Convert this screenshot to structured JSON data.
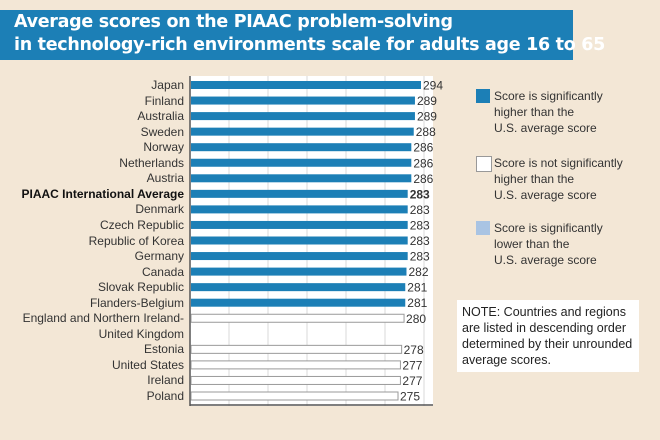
{
  "title": {
    "line1": "Average scores on the PIAAC problem-solving",
    "line2": "in technology-rich environments scale for adults age 16 to 65"
  },
  "colors": {
    "higher": "#1c7fb6",
    "not_significant": "#ffffff",
    "lower": "#a9c4e3",
    "banner": "#1c7fb6",
    "background": "#f3e7d6"
  },
  "chart_data": {
    "type": "bar",
    "orientation": "horizontal",
    "title": "Average scores on the PIAAC problem-solving in technology-rich environments scale for adults age 16 to 65",
    "grid": true,
    "categories": [
      "Japan",
      "Finland",
      "Australia",
      "Sweden",
      "Norway",
      "Netherlands",
      "Austria",
      "PIAAC International Average",
      "Denmark",
      "Czech Republic",
      "Republic of Korea",
      "Germany",
      "Canada",
      "Slovak Republic",
      "Flanders-Belgium",
      "England and Northern Ireland-United Kingdom",
      "Estonia",
      "United States",
      "Ireland",
      "Poland"
    ],
    "values": [
      294,
      289,
      289,
      288,
      286,
      286,
      286,
      283,
      283,
      283,
      283,
      283,
      282,
      281,
      281,
      280,
      278,
      277,
      277,
      275
    ],
    "significance": [
      "higher",
      "higher",
      "higher",
      "higher",
      "higher",
      "higher",
      "higher",
      "higher",
      "higher",
      "higher",
      "higher",
      "higher",
      "higher",
      "higher",
      "higher",
      "not_significant",
      "not_significant",
      "not_significant",
      "not_significant",
      "not_significant"
    ],
    "label_lines": [
      [
        "Japan"
      ],
      [
        "Finland"
      ],
      [
        "Australia"
      ],
      [
        "Sweden"
      ],
      [
        "Norway"
      ],
      [
        "Netherlands"
      ],
      [
        "Austria"
      ],
      [
        "PIAAC International Average"
      ],
      [
        "Denmark"
      ],
      [
        "Czech Republic"
      ],
      [
        "Republic of Korea"
      ],
      [
        "Germany"
      ],
      [
        "Canada"
      ],
      [
        "Slovak Republic"
      ],
      [
        "Flanders-Belgium"
      ],
      [
        "England and Northern Ireland-",
        "United Kingdom"
      ],
      [
        "Estonia"
      ],
      [
        "United States"
      ],
      [
        "Ireland"
      ],
      [
        "Poland"
      ]
    ],
    "highlight": "PIAAC International Average"
  },
  "legend": [
    {
      "key": "higher",
      "lines": [
        "Score is significantly",
        "higher than the",
        "U.S. average score"
      ]
    },
    {
      "key": "not_significant",
      "lines": [
        "Score is not significantly",
        "higher than the",
        "U.S. average score"
      ]
    },
    {
      "key": "lower",
      "lines": [
        "Score is significantly",
        "lower than the",
        "U.S. average score"
      ]
    }
  ],
  "note": "NOTE: Countries and regions are listed in descending order determined by their unrounded average scores."
}
